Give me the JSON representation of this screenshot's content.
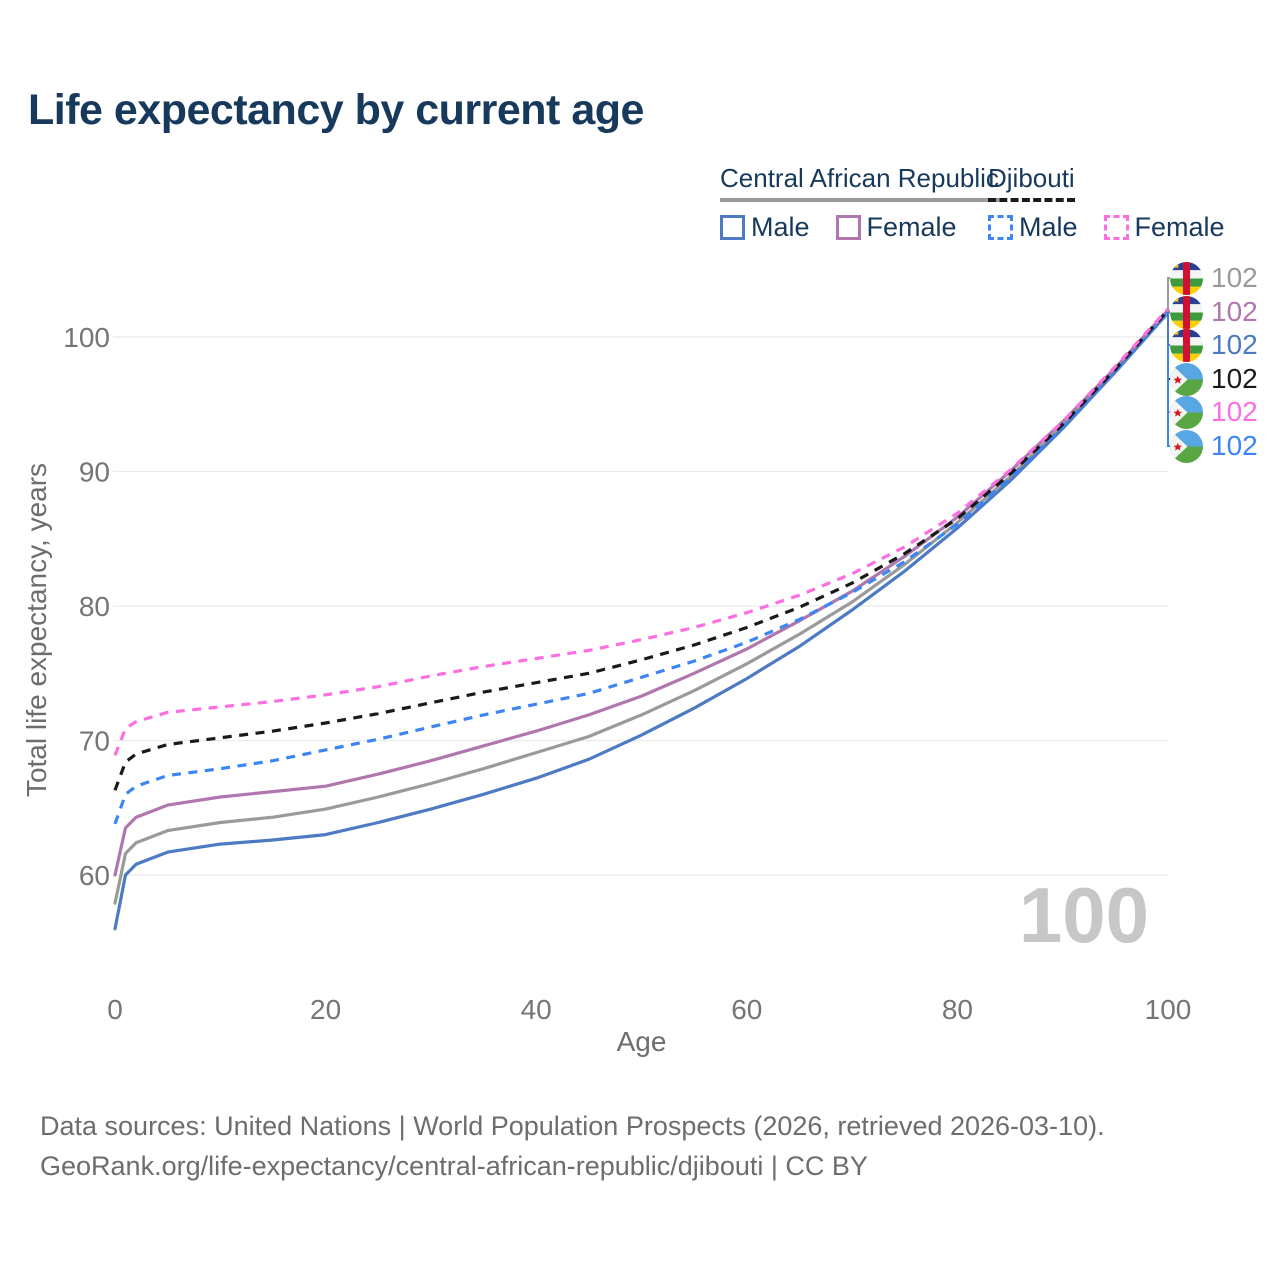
{
  "title": "Life expectancy by current age",
  "legend": {
    "groups": [
      {
        "name": "Central African Republic",
        "underline_style": "solid",
        "underline_color": "#9a9a9a",
        "items": [
          {
            "label": "Male",
            "color": "#4d7ac2",
            "style": "solid"
          },
          {
            "label": "Female",
            "color": "#b077ae",
            "style": "solid"
          }
        ]
      },
      {
        "name": "Djibouti",
        "underline_style": "dashed",
        "underline_color": "#1a1a1a",
        "items": [
          {
            "label": "Male",
            "color": "#3d85f2",
            "style": "dashed"
          },
          {
            "label": "Female",
            "color": "#fb6fe0",
            "style": "dashed"
          }
        ]
      }
    ]
  },
  "chart_data": {
    "type": "line",
    "title": "Life expectancy by current age",
    "xlabel": "Age",
    "ylabel": "Total life expectancy, years",
    "x_ticks": [
      0,
      20,
      40,
      60,
      80,
      100
    ],
    "y_ticks": [
      60,
      70,
      80,
      90,
      100
    ],
    "xlim": [
      0,
      100
    ],
    "ylim": [
      55,
      104
    ],
    "grid": "horizontal-only",
    "legend_position": "top-right",
    "watermark": "100",
    "ages": [
      0,
      1,
      2,
      5,
      10,
      15,
      20,
      25,
      30,
      35,
      40,
      45,
      50,
      55,
      60,
      65,
      70,
      75,
      80,
      85,
      90,
      95,
      100
    ],
    "series": [
      {
        "name": "Central African Republic — Both sexes",
        "country": "Central African Republic",
        "sex": "Both",
        "color": "#9a9a9a",
        "style": "solid",
        "values": [
          57.9,
          61.6,
          62.4,
          63.3,
          63.9,
          64.3,
          64.9,
          65.8,
          66.8,
          67.9,
          69.1,
          70.3,
          71.9,
          73.7,
          75.7,
          77.9,
          80.3,
          83.1,
          86.2,
          89.6,
          93.4,
          97.5,
          101.9
        ]
      },
      {
        "name": "Central African Republic — Male",
        "country": "Central African Republic",
        "sex": "Male",
        "color": "#4d7ac2",
        "style": "solid",
        "values": [
          56.0,
          60.0,
          60.8,
          61.7,
          62.3,
          62.6,
          63.0,
          63.9,
          64.9,
          66.0,
          67.2,
          68.6,
          70.4,
          72.4,
          74.6,
          77.0,
          79.7,
          82.6,
          85.8,
          89.3,
          93.2,
          97.4,
          101.8
        ]
      },
      {
        "name": "Central African Republic — Female",
        "country": "Central African Republic",
        "sex": "Female",
        "color": "#b077ae",
        "style": "solid",
        "values": [
          60.0,
          63.5,
          64.3,
          65.2,
          65.8,
          66.2,
          66.6,
          67.5,
          68.5,
          69.6,
          70.7,
          71.9,
          73.3,
          75.0,
          76.8,
          78.9,
          81.1,
          83.7,
          86.6,
          90.0,
          93.7,
          97.7,
          102.0
        ]
      },
      {
        "name": "Djibouti — Male",
        "country": "Djibouti",
        "sex": "Male",
        "color": "#3d85f2",
        "style": "dashed",
        "values": [
          63.8,
          66.0,
          66.6,
          67.4,
          67.9,
          68.5,
          69.3,
          70.1,
          71.0,
          71.9,
          72.7,
          73.5,
          74.7,
          75.9,
          77.3,
          79.0,
          81.0,
          83.3,
          86.1,
          89.5,
          93.3,
          97.4,
          101.8
        ]
      },
      {
        "name": "Djibouti — Both sexes",
        "country": "Djibouti",
        "sex": "Both",
        "color": "#1a1a1a",
        "style": "dashed",
        "values": [
          66.3,
          68.4,
          69.0,
          69.7,
          70.2,
          70.7,
          71.3,
          72.0,
          72.8,
          73.6,
          74.3,
          75.0,
          76.0,
          77.1,
          78.4,
          79.9,
          81.7,
          83.9,
          86.5,
          89.8,
          93.5,
          97.6,
          102.0
        ]
      },
      {
        "name": "Djibouti — Female",
        "country": "Djibouti",
        "sex": "Female",
        "color": "#fb6fe0",
        "style": "dashed",
        "values": [
          68.9,
          70.9,
          71.4,
          72.1,
          72.5,
          72.9,
          73.4,
          74.0,
          74.8,
          75.5,
          76.1,
          76.7,
          77.5,
          78.4,
          79.5,
          80.8,
          82.4,
          84.4,
          86.9,
          90.1,
          93.7,
          97.8,
          102.1
        ]
      }
    ],
    "end_labels": [
      {
        "flag": "central-african-republic",
        "value": "102",
        "color": "#9a9a9a"
      },
      {
        "flag": "central-african-republic",
        "value": "102",
        "color": "#b077ae"
      },
      {
        "flag": "central-african-republic",
        "value": "102",
        "color": "#4d7ac2"
      },
      {
        "flag": "djibouti",
        "value": "102",
        "color": "#1a1a1a"
      },
      {
        "flag": "djibouti",
        "value": "102",
        "color": "#fb6fe0"
      },
      {
        "flag": "djibouti",
        "value": "102",
        "color": "#3d85f2"
      }
    ]
  },
  "footer": {
    "line1": "Data sources: United Nations | World Population Prospects (2026, retrieved 2026-03-10).",
    "line2": "GeoRank.org/life-expectancy/central-african-republic/djibouti | CC BY"
  }
}
